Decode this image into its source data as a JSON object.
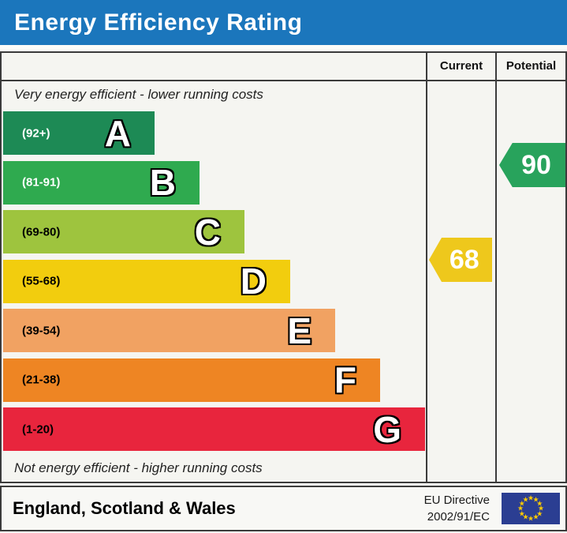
{
  "title": "Energy Efficiency Rating",
  "columns": {
    "current": "Current",
    "potential": "Potential"
  },
  "top_note": "Very energy efficient - lower running costs",
  "bottom_note": "Not energy efficient - higher running costs",
  "bands": [
    {
      "letter": "A",
      "range": "(92+)",
      "min": 92,
      "max": 100,
      "color": "#1d8a55",
      "label_color": "#ffffff"
    },
    {
      "letter": "B",
      "range": "(81-91)",
      "min": 81,
      "max": 91,
      "color": "#2faa4f",
      "label_color": "#ffffff"
    },
    {
      "letter": "C",
      "range": "(69-80)",
      "min": 69,
      "max": 80,
      "color": "#9ec43e",
      "label_color": "#000000"
    },
    {
      "letter": "D",
      "range": "(55-68)",
      "min": 55,
      "max": 68,
      "color": "#f2cd0e",
      "label_color": "#000000"
    },
    {
      "letter": "E",
      "range": "(39-54)",
      "min": 39,
      "max": 54,
      "color": "#f1a262",
      "label_color": "#000000"
    },
    {
      "letter": "F",
      "range": "(21-38)",
      "min": 21,
      "max": 38,
      "color": "#ee8523",
      "label_color": "#000000"
    },
    {
      "letter": "G",
      "range": "(1-20)",
      "min": 1,
      "max": 20,
      "color": "#e8253d",
      "label_color": "#000000"
    }
  ],
  "current": {
    "value": 68,
    "color": "#eec81c",
    "band": "D"
  },
  "potential": {
    "value": 90,
    "color": "#28a35c",
    "band": "B"
  },
  "footer": {
    "region": "England, Scotland & Wales",
    "directive_line1": "EU Directive",
    "directive_line2": "2002/91/EC"
  },
  "icons": {
    "eu_flag": "circle-of-12-stars"
  },
  "colors": {
    "header_blue": "#1b76bc",
    "border": "#3b3b3b"
  },
  "chart_data": {
    "type": "bar",
    "title": "Energy Efficiency Rating",
    "categories": [
      "A",
      "B",
      "C",
      "D",
      "E",
      "F",
      "G"
    ],
    "band_ranges": [
      "92+",
      "81-91",
      "69-80",
      "55-68",
      "39-54",
      "21-38",
      "1-20"
    ],
    "band_colors": [
      "#1d8a55",
      "#2faa4f",
      "#9ec43e",
      "#f2cd0e",
      "#f1a262",
      "#ee8523",
      "#e8253d"
    ],
    "current_rating": 68,
    "current_band": "D",
    "potential_rating": 90,
    "potential_band": "B",
    "scale_min": 1,
    "scale_max": 100,
    "top_annotation": "Very energy efficient - lower running costs",
    "bottom_annotation": "Not energy efficient - higher running costs",
    "columns": [
      "Current",
      "Potential"
    ],
    "footer_region": "England, Scotland & Wales",
    "footer_directive": "EU Directive 2002/91/EC"
  }
}
